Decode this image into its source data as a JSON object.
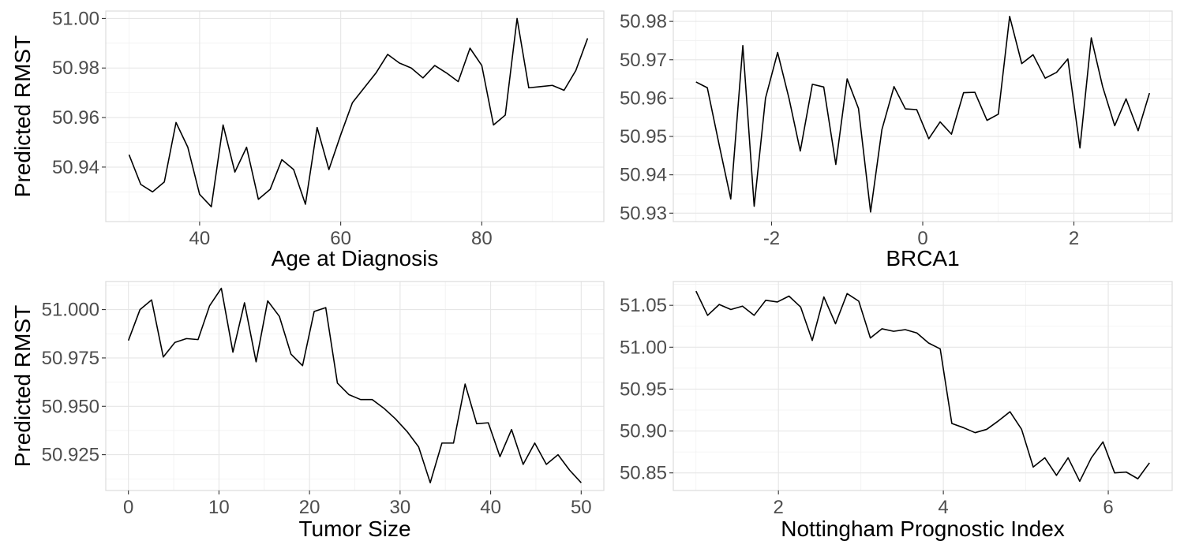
{
  "chart_data": [
    {
      "type": "line",
      "xlabel": "Age at Diagnosis",
      "ylabel": "Predicted RMST",
      "xlim": [
        26.7,
        97.3
      ],
      "ylim": [
        50.918,
        51.003
      ],
      "xticks": [
        40,
        60,
        80
      ],
      "xtick_labels": [
        "40",
        "60",
        "80"
      ],
      "yticks": [
        50.94,
        50.96,
        50.98,
        51.0
      ],
      "ytick_labels": [
        "50.94",
        "50.96",
        "50.98",
        "51.00"
      ],
      "grid": true,
      "series": [
        {
          "x": [
            30,
            31.66,
            33.33,
            35,
            36.66,
            38.33,
            40,
            41.66,
            43.33,
            45,
            46.66,
            48.33,
            50,
            51.66,
            53.33,
            55,
            56.66,
            58.33,
            60,
            61.66,
            63.33,
            65,
            66.66,
            68.33,
            70,
            71.66,
            73.33,
            75,
            76.66,
            78.33,
            80,
            81.66,
            83.33,
            85,
            86.66,
            88.33,
            90,
            91.66,
            93.33,
            95
          ],
          "y": [
            50.945,
            50.933,
            50.93,
            50.934,
            50.958,
            50.948,
            50.929,
            50.924,
            50.957,
            50.938,
            50.948,
            50.927,
            50.931,
            50.943,
            50.939,
            50.925,
            50.956,
            50.939,
            50.953,
            50.966,
            50.972,
            50.978,
            50.9855,
            50.982,
            50.98,
            50.976,
            50.981,
            50.978,
            50.9745,
            50.988,
            50.981,
            50.957,
            50.961,
            51.0,
            50.972,
            50.9725,
            50.973,
            50.971,
            50.979,
            50.992
          ]
        }
      ]
    },
    {
      "type": "line",
      "xlabel": "BRCA1",
      "ylabel": "",
      "xlim": [
        -3.3,
        3.3
      ],
      "ylim": [
        50.9278,
        50.9827
      ],
      "xticks": [
        -2,
        0,
        2
      ],
      "xtick_labels": [
        "-2",
        "0",
        "2"
      ],
      "yticks": [
        50.93,
        50.94,
        50.95,
        50.96,
        50.97,
        50.98
      ],
      "ytick_labels": [
        "50.93",
        "50.94",
        "50.95",
        "50.96",
        "50.97",
        "50.98"
      ],
      "grid": true,
      "series": [
        {
          "x": [
            -3.0,
            -2.85,
            -2.69,
            -2.54,
            -2.38,
            -2.23,
            -2.08,
            -1.92,
            -1.77,
            -1.62,
            -1.46,
            -1.31,
            -1.15,
            -1.0,
            -0.85,
            -0.69,
            -0.54,
            -0.38,
            -0.23,
            -0.08,
            0.08,
            0.23,
            0.38,
            0.54,
            0.69,
            0.85,
            1.0,
            1.15,
            1.31,
            1.46,
            1.62,
            1.77,
            1.92,
            2.08,
            2.23,
            2.38,
            2.54,
            2.69,
            2.85,
            3.0
          ],
          "y": [
            50.9642,
            50.9627,
            50.9475,
            50.9337,
            50.9737,
            50.9318,
            50.96,
            50.9719,
            50.96,
            50.9462,
            50.9636,
            50.9629,
            50.9427,
            50.965,
            50.9573,
            50.9303,
            50.9518,
            50.963,
            50.9572,
            50.957,
            50.9494,
            50.9538,
            50.9506,
            50.9614,
            50.9615,
            50.9542,
            50.9558,
            50.9813,
            50.969,
            50.9713,
            50.9652,
            50.9667,
            50.9702,
            50.947,
            50.9757,
            50.963,
            50.9528,
            50.9598,
            50.9515,
            50.9613
          ]
        }
      ]
    },
    {
      "type": "line",
      "xlabel": "Tumor Size",
      "ylabel": "Predicted RMST",
      "xlim": [
        -2.5,
        52.5
      ],
      "ylim": [
        50.9065,
        51.0145
      ],
      "xticks": [
        0,
        10,
        20,
        30,
        40,
        50
      ],
      "xtick_labels": [
        "0",
        "10",
        "20",
        "30",
        "40",
        "50"
      ],
      "yticks": [
        50.925,
        50.95,
        50.975,
        51.0
      ],
      "ytick_labels": [
        "50.925",
        "50.950",
        "50.975",
        "51.000"
      ],
      "grid": true,
      "series": [
        {
          "x": [
            0,
            1.28,
            2.56,
            3.85,
            5.13,
            6.41,
            7.69,
            8.97,
            10.26,
            11.54,
            12.82,
            14.1,
            15.38,
            16.67,
            17.95,
            19.23,
            20.51,
            21.79,
            23.08,
            24.36,
            25.64,
            26.92,
            28.21,
            29.49,
            30.77,
            32.05,
            33.33,
            34.62,
            35.9,
            37.18,
            38.46,
            39.74,
            41.03,
            42.31,
            43.59,
            44.87,
            46.15,
            47.44,
            48.72,
            50.0
          ],
          "y": [
            50.984,
            51.0,
            51.005,
            50.9755,
            50.983,
            50.985,
            50.9845,
            51.002,
            51.011,
            50.978,
            51.0035,
            50.973,
            51.0045,
            50.9965,
            50.977,
            50.971,
            50.999,
            51.001,
            50.962,
            50.956,
            50.9535,
            50.9535,
            50.949,
            50.9435,
            50.937,
            50.929,
            50.9105,
            50.931,
            50.931,
            50.9615,
            50.941,
            50.9415,
            50.924,
            50.938,
            50.92,
            50.931,
            50.92,
            50.925,
            50.917,
            50.9105
          ]
        }
      ]
    },
    {
      "type": "line",
      "xlabel": "Nottingham Prognostic Index",
      "ylabel": "",
      "xlim": [
        0.725,
        6.775
      ],
      "ylim": [
        50.829,
        51.0784
      ],
      "xticks": [
        2,
        4,
        6
      ],
      "xtick_labels": [
        "2",
        "4",
        "6"
      ],
      "yticks": [
        50.85,
        50.9,
        50.95,
        51.0,
        51.05
      ],
      "ytick_labels": [
        "50.85",
        "50.90",
        "50.95",
        "51.00",
        "51.05"
      ],
      "grid": true,
      "series": [
        {
          "x": [
            1.0,
            1.141,
            1.282,
            1.423,
            1.564,
            1.705,
            1.846,
            1.987,
            2.128,
            2.269,
            2.41,
            2.551,
            2.692,
            2.833,
            2.974,
            3.115,
            3.256,
            3.397,
            3.538,
            3.679,
            3.821,
            3.962,
            4.103,
            4.244,
            4.385,
            4.526,
            4.667,
            4.808,
            4.949,
            5.09,
            5.231,
            5.372,
            5.513,
            5.654,
            5.795,
            5.936,
            6.077,
            6.218,
            6.359,
            6.5
          ],
          "y": [
            51.067,
            51.038,
            51.051,
            51.045,
            51.049,
            51.038,
            51.056,
            51.054,
            51.061,
            51.048,
            51.008,
            51.06,
            51.028,
            51.064,
            51.055,
            51.011,
            51.022,
            51.019,
            51.021,
            51.017,
            51.005,
            50.998,
            50.909,
            50.904,
            50.898,
            50.902,
            50.912,
            50.923,
            50.902,
            50.857,
            50.868,
            50.847,
            50.868,
            50.84,
            50.868,
            50.887,
            50.85,
            50.851,
            50.843,
            50.862
          ]
        }
      ]
    }
  ]
}
